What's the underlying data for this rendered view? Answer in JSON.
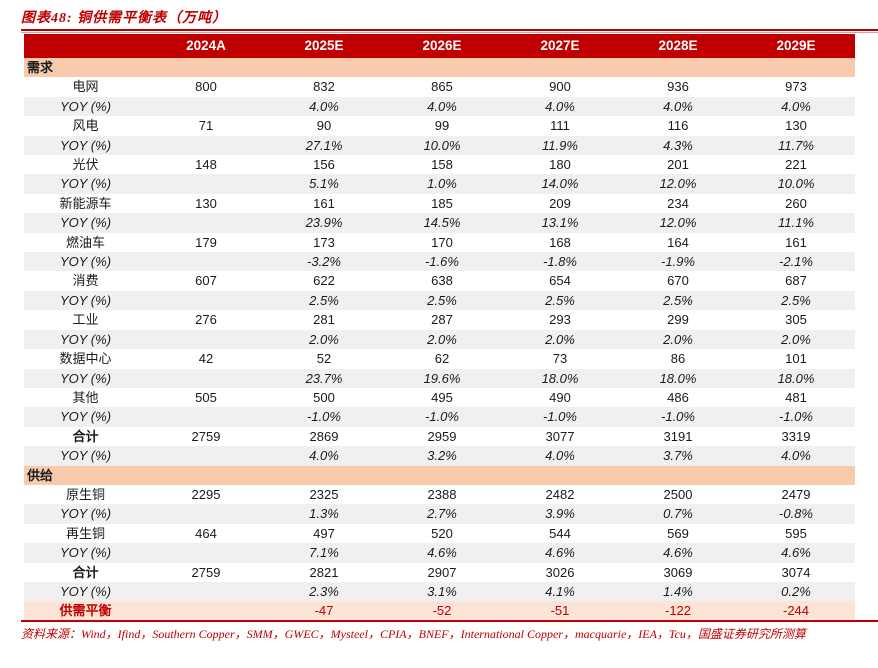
{
  "title": "图表48:  铜供需平衡表（万吨）",
  "footer": {
    "source": "资料来源：Wind，Ifind，Southern Copper，SMM，GWEC，Mysteel，CPIA，BNEF，International Copper，macquarie，IEA，Tcu，国盛证券研究所测算"
  },
  "colors": {
    "header_bg": "#c00000",
    "section_bg": "#f8cbad",
    "yoy_bg": "#f0f0f0",
    "balance_bg": "#fce4d6",
    "accent_red": "#c00000"
  },
  "chart_data": {
    "type": "table",
    "title": "铜供需平衡表（万吨）",
    "columns": [
      "2024A",
      "2025E",
      "2026E",
      "2027E",
      "2028E",
      "2029E"
    ],
    "rows": [
      {
        "label": "需求",
        "type": "section",
        "values": [
          "",
          "",
          "",
          "",
          "",
          ""
        ]
      },
      {
        "label": "电网",
        "type": "data",
        "values": [
          800,
          832,
          865,
          900,
          936,
          973
        ]
      },
      {
        "label": "YOY (%)",
        "type": "yoy",
        "values": [
          "",
          "4.0%",
          "4.0%",
          "4.0%",
          "4.0%",
          "4.0%"
        ]
      },
      {
        "label": "风电",
        "type": "data",
        "values": [
          71,
          90,
          99,
          111,
          116,
          130
        ]
      },
      {
        "label": "YOY (%)",
        "type": "yoy",
        "values": [
          "",
          "27.1%",
          "10.0%",
          "11.9%",
          "4.3%",
          "11.7%"
        ]
      },
      {
        "label": "光伏",
        "type": "data",
        "values": [
          148,
          156,
          158,
          180,
          201,
          221
        ]
      },
      {
        "label": "YOY (%)",
        "type": "yoy",
        "values": [
          "",
          "5.1%",
          "1.0%",
          "14.0%",
          "12.0%",
          "10.0%"
        ]
      },
      {
        "label": "新能源车",
        "type": "data",
        "values": [
          130,
          161,
          185,
          209,
          234,
          260
        ]
      },
      {
        "label": "YOY (%)",
        "type": "yoy",
        "values": [
          "",
          "23.9%",
          "14.5%",
          "13.1%",
          "12.0%",
          "11.1%"
        ]
      },
      {
        "label": "燃油车",
        "type": "data",
        "values": [
          179,
          173,
          170,
          168,
          164,
          161
        ]
      },
      {
        "label": "YOY (%)",
        "type": "yoy",
        "values": [
          "",
          "-3.2%",
          "-1.6%",
          "-1.8%",
          "-1.9%",
          "-2.1%"
        ]
      },
      {
        "label": "消费",
        "type": "data",
        "values": [
          607,
          622,
          638,
          654,
          670,
          687
        ]
      },
      {
        "label": "YOY (%)",
        "type": "yoy",
        "values": [
          "",
          "2.5%",
          "2.5%",
          "2.5%",
          "2.5%",
          "2.5%"
        ]
      },
      {
        "label": "工业",
        "type": "data",
        "values": [
          276,
          281,
          287,
          293,
          299,
          305
        ]
      },
      {
        "label": "YOY (%)",
        "type": "yoy",
        "values": [
          "",
          "2.0%",
          "2.0%",
          "2.0%",
          "2.0%",
          "2.0%"
        ]
      },
      {
        "label": "数据中心",
        "type": "data",
        "values": [
          42,
          52,
          62,
          73,
          86,
          101
        ]
      },
      {
        "label": "YOY (%)",
        "type": "yoy",
        "values": [
          "",
          "23.7%",
          "19.6%",
          "18.0%",
          "18.0%",
          "18.0%"
        ]
      },
      {
        "label": "其他",
        "type": "data",
        "values": [
          505,
          500,
          495,
          490,
          486,
          481
        ]
      },
      {
        "label": "YOY (%)",
        "type": "yoy",
        "values": [
          "",
          "-1.0%",
          "-1.0%",
          "-1.0%",
          "-1.0%",
          "-1.0%"
        ]
      },
      {
        "label": "合计",
        "type": "total",
        "values": [
          2759,
          2869,
          2959,
          3077,
          3191,
          3319
        ]
      },
      {
        "label": "YOY (%)",
        "type": "yoy",
        "values": [
          "",
          "4.0%",
          "3.2%",
          "4.0%",
          "3.7%",
          "4.0%"
        ]
      },
      {
        "label": "供给",
        "type": "section",
        "values": [
          "",
          "",
          "",
          "",
          "",
          ""
        ]
      },
      {
        "label": "原生铜",
        "type": "data",
        "values": [
          2295,
          2325,
          2388,
          2482,
          2500,
          2479
        ]
      },
      {
        "label": "YOY (%)",
        "type": "yoy",
        "values": [
          "",
          "1.3%",
          "2.7%",
          "3.9%",
          "0.7%",
          "-0.8%"
        ]
      },
      {
        "label": "再生铜",
        "type": "data",
        "values": [
          464,
          497,
          520,
          544,
          569,
          595
        ]
      },
      {
        "label": "YOY (%)",
        "type": "yoy",
        "values": [
          "",
          "7.1%",
          "4.6%",
          "4.6%",
          "4.6%",
          "4.6%"
        ]
      },
      {
        "label": "合计",
        "type": "total",
        "values": [
          2759,
          2821,
          2907,
          3026,
          3069,
          3074
        ]
      },
      {
        "label": "YOY (%)",
        "type": "yoy",
        "values": [
          "",
          "2.3%",
          "3.1%",
          "4.1%",
          "1.4%",
          "0.2%"
        ]
      },
      {
        "label": "供需平衡",
        "type": "balance",
        "values": [
          "",
          -47,
          -52,
          -51,
          -122,
          -244
        ]
      }
    ]
  }
}
